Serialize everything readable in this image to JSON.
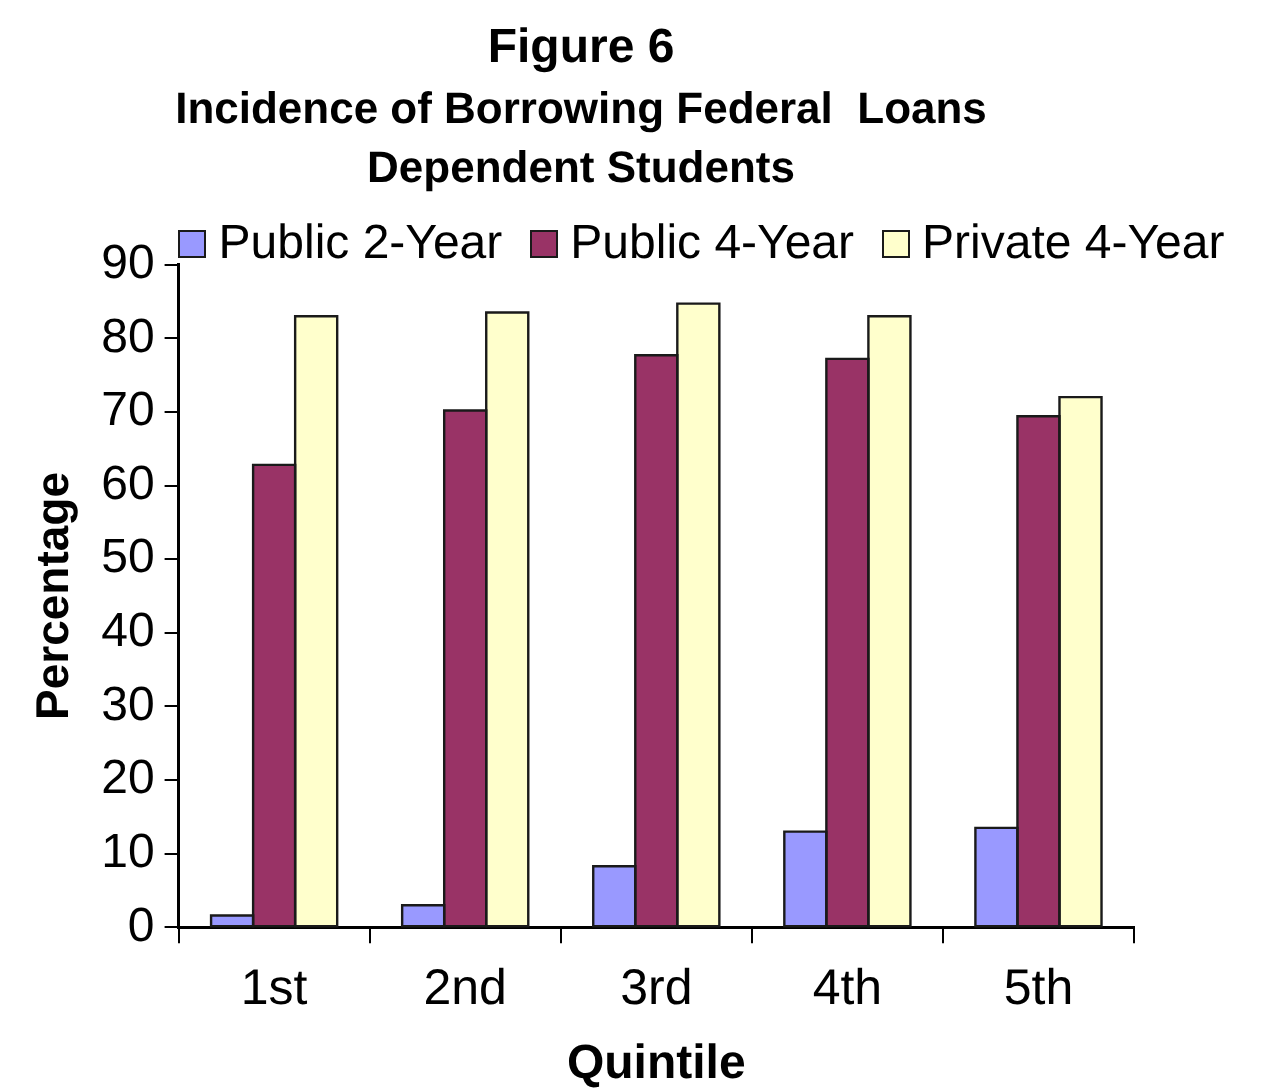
{
  "chart_data": {
    "type": "bar",
    "title": "Figure 6",
    "subtitle": "Incidence of Borrowing Federal  Loans\nDependent Students",
    "xlabel": "Quintile",
    "ylabel": "Percentage",
    "categories": [
      "1st",
      "2nd",
      "3rd",
      "4th",
      "5th"
    ],
    "series": [
      {
        "name": "Public 2-Year",
        "color": "#9999ff",
        "values": [
          1.6,
          3.0,
          8.3,
          13.0,
          13.5
        ]
      },
      {
        "name": "Public 4-Year",
        "color": "#993366",
        "values": [
          62.8,
          70.2,
          77.7,
          77.2,
          69.4
        ]
      },
      {
        "name": "Private 4-Year",
        "color": "#ffffcc",
        "values": [
          83.0,
          83.5,
          84.7,
          83.0,
          72.0
        ]
      }
    ],
    "ylim": [
      0,
      90
    ],
    "yticks": [
      0,
      10,
      20,
      30,
      40,
      50,
      60,
      70,
      80,
      90
    ],
    "grid": false,
    "legend": "top"
  }
}
